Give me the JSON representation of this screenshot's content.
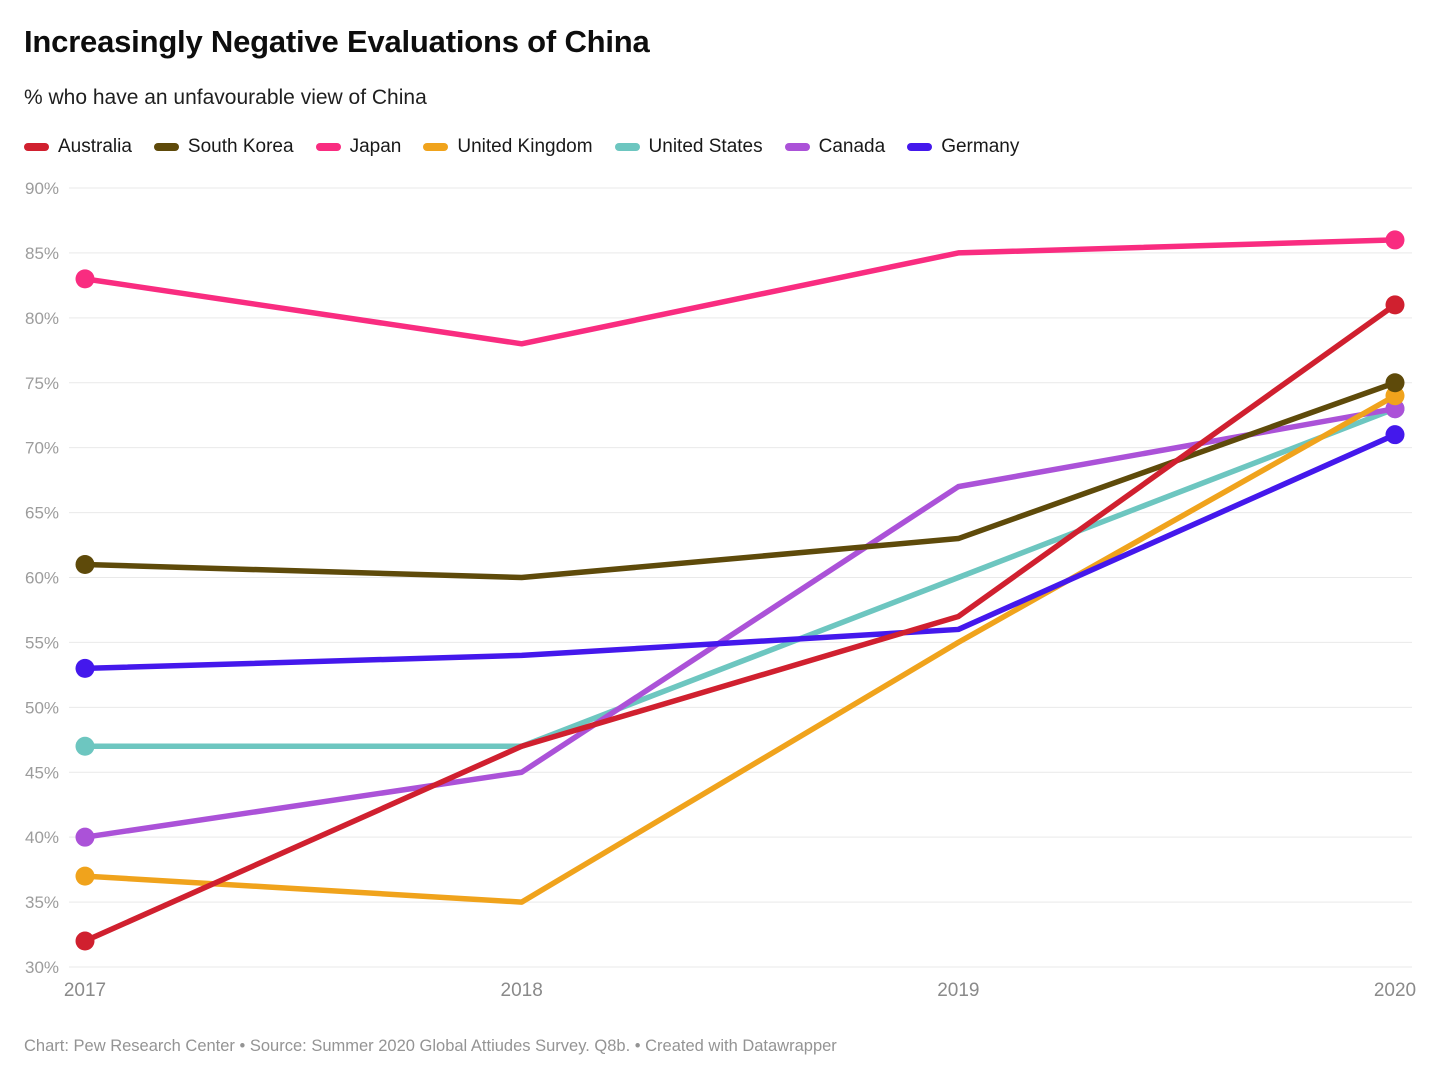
{
  "header": {
    "title": "Increasingly Negative Evaluations of China",
    "subtitle": "% who have an unfavourable view of China"
  },
  "footer": {
    "text": "Chart: Pew Research Center • Source: Summer 2020 Global Attiudes Survey. Q8b. • Created with Datawrapper"
  },
  "chart_data": {
    "type": "line",
    "title": "Increasingly Negative Evaluations of China",
    "subtitle": "% who have an unfavourable view of China",
    "x": [
      "2017",
      "2018",
      "2019",
      "2020"
    ],
    "series": [
      {
        "name": "Australia",
        "color": "#d0202f",
        "values": [
          32,
          47,
          57,
          81
        ]
      },
      {
        "name": "South Korea",
        "color": "#5e4a0a",
        "values": [
          61,
          60,
          63,
          75
        ]
      },
      {
        "name": "Japan",
        "color": "#f92c80",
        "values": [
          83,
          78,
          85,
          86
        ]
      },
      {
        "name": "United Kingdom",
        "color": "#f0a31c",
        "values": [
          37,
          35,
          55,
          74
        ]
      },
      {
        "name": "United States",
        "color": "#6dc6c0",
        "values": [
          47,
          47,
          60,
          73
        ]
      },
      {
        "name": "Canada",
        "color": "#ab52d8",
        "values": [
          40,
          45,
          67,
          73
        ]
      },
      {
        "name": "Germany",
        "color": "#4418ec",
        "values": [
          53,
          54,
          56,
          71
        ]
      }
    ],
    "ylim": [
      30,
      90
    ],
    "yticks": [
      30,
      35,
      40,
      45,
      50,
      55,
      60,
      65,
      70,
      75,
      80,
      85,
      90
    ],
    "ytick_labels": [
      "30%",
      "35%",
      "40%",
      "45%",
      "50%",
      "55%",
      "60%",
      "65%",
      "70%",
      "75%",
      "80%",
      "85%",
      "90%"
    ],
    "grid": true,
    "legend_position": "top",
    "legend_order": [
      "Australia",
      "South Korea",
      "Japan",
      "United Kingdom",
      "United States",
      "Canada",
      "Germany"
    ],
    "draw_order": [
      "United States",
      "Canada",
      "United Kingdom",
      "Germany",
      "South Korea",
      "Japan",
      "Australia"
    ],
    "styles": {
      "grid_color": "#e9e9e9",
      "y_label_color": "#9c9c9c",
      "x_label_color": "#8a8a8a"
    }
  }
}
